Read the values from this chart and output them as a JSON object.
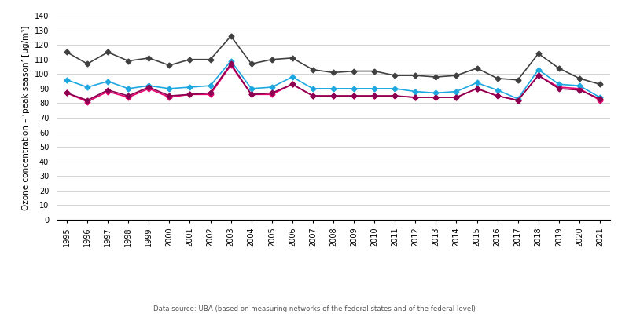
{
  "years": [
    1995,
    1996,
    1997,
    1998,
    1999,
    2000,
    2001,
    2002,
    2003,
    2004,
    2005,
    2006,
    2007,
    2008,
    2009,
    2010,
    2011,
    2012,
    2013,
    2014,
    2015,
    2016,
    2017,
    2018,
    2019,
    2020,
    2021
  ],
  "urban": [
    87,
    81,
    88,
    84,
    90,
    84,
    86,
    86,
    106,
    86,
    86,
    93,
    85,
    85,
    85,
    85,
    85,
    84,
    84,
    84,
    90,
    85,
    82,
    99,
    91,
    90,
    82
  ],
  "rural": [
    96,
    91,
    95,
    90,
    92,
    90,
    91,
    92,
    109,
    90,
    91,
    98,
    90,
    90,
    90,
    90,
    90,
    88,
    87,
    88,
    94,
    89,
    83,
    103,
    93,
    92,
    84
  ],
  "industrial": [
    87,
    82,
    89,
    85,
    91,
    85,
    86,
    87,
    107,
    86,
    87,
    93,
    85,
    85,
    85,
    85,
    85,
    84,
    84,
    84,
    90,
    85,
    82,
    99,
    90,
    89,
    83
  ],
  "mountain": [
    115,
    107,
    115,
    109,
    111,
    106,
    110,
    110,
    126,
    107,
    110,
    111,
    103,
    101,
    102,
    102,
    99,
    99,
    98,
    99,
    104,
    97,
    96,
    114,
    104,
    97,
    93
  ],
  "urban_color": "#e8006e",
  "rural_color": "#1da7e0",
  "industrial_color": "#8b0050",
  "mountain_color": "#404040",
  "ylim": [
    0,
    140
  ],
  "yticks": [
    0,
    10,
    20,
    30,
    40,
    50,
    60,
    70,
    80,
    90,
    100,
    110,
    120,
    130,
    140
  ],
  "ylabel": "Ozone concentration – ‘peak season’ [µg/m³]",
  "source_text": "Data source: UBA (based on measuring networks of the federal states and of the federal level)",
  "marker": "D",
  "linewidth": 1.2,
  "markersize": 3.5,
  "tick_fontsize": 7,
  "ylabel_fontsize": 7.5,
  "legend_fontsize": 7.5,
  "source_fontsize": 6.2
}
